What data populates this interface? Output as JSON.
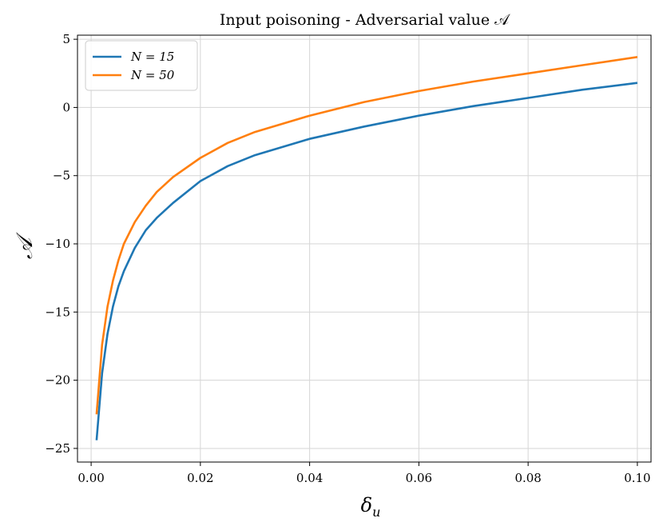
{
  "chart_data": {
    "type": "line",
    "title": "Input poisoning - Adversarial value 𝒜",
    "xlabel": "δ",
    "xlabel_sub": "u",
    "ylabel": "𝒜",
    "xlim": [
      -0.0025,
      0.1025
    ],
    "ylim": [
      -26.0,
      5.3
    ],
    "x_ticks": [
      0.0,
      0.02,
      0.04,
      0.06,
      0.08,
      0.1
    ],
    "x_tick_labels": [
      "0.00",
      "0.02",
      "0.04",
      "0.06",
      "0.08",
      "0.10"
    ],
    "y_ticks": [
      -25,
      -20,
      -15,
      -10,
      -5,
      0,
      5
    ],
    "y_tick_labels": [
      "−25",
      "−20",
      "−15",
      "−10",
      "−5",
      "0",
      "5"
    ],
    "grid": true,
    "legend_position": "top-left",
    "series": [
      {
        "name": "N = 15",
        "color": "#1f77b4",
        "x": [
          0.001,
          0.002,
          0.003,
          0.004,
          0.005,
          0.006,
          0.008,
          0.01,
          0.012,
          0.015,
          0.02,
          0.025,
          0.03,
          0.04,
          0.05,
          0.06,
          0.07,
          0.08,
          0.09,
          0.1
        ],
        "y": [
          -24.4,
          -19.5,
          -16.6,
          -14.6,
          -13.1,
          -12.0,
          -10.3,
          -9.0,
          -8.1,
          -7.0,
          -5.4,
          -4.3,
          -3.5,
          -2.3,
          -1.4,
          -0.6,
          0.1,
          0.7,
          1.3,
          1.8
        ]
      },
      {
        "name": "N = 50",
        "color": "#ff7f0e",
        "x": [
          0.001,
          0.002,
          0.003,
          0.004,
          0.005,
          0.006,
          0.008,
          0.01,
          0.012,
          0.015,
          0.02,
          0.025,
          0.03,
          0.04,
          0.05,
          0.06,
          0.07,
          0.08,
          0.09,
          0.1
        ],
        "y": [
          -22.5,
          -17.4,
          -14.6,
          -12.7,
          -11.2,
          -10.0,
          -8.4,
          -7.2,
          -6.2,
          -5.1,
          -3.7,
          -2.6,
          -1.8,
          -0.6,
          0.4,
          1.2,
          1.9,
          2.5,
          3.1,
          3.7
        ]
      }
    ]
  }
}
